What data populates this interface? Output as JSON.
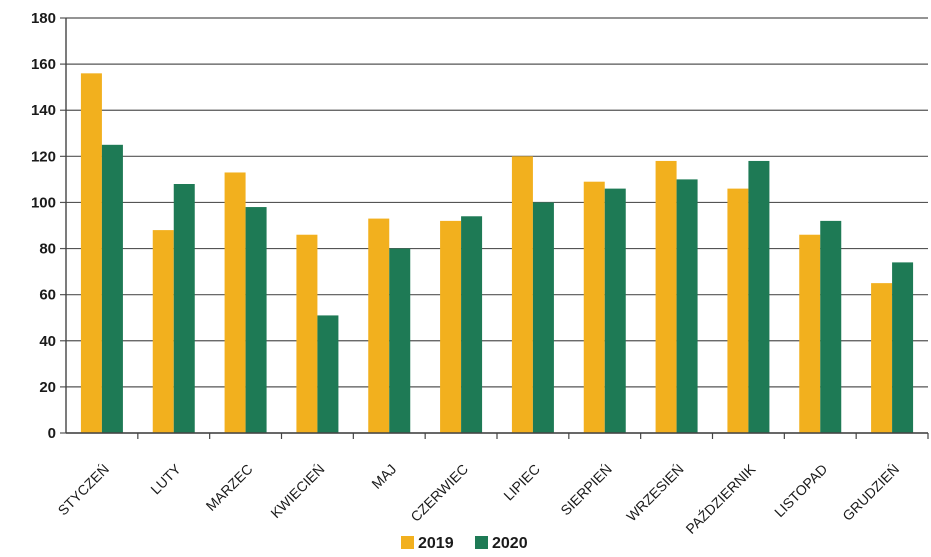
{
  "chart_data": {
    "type": "bar",
    "title": "",
    "xlabel": "",
    "ylabel": "",
    "ylim": [
      0,
      180
    ],
    "yticks": [
      0,
      20,
      40,
      60,
      80,
      100,
      120,
      140,
      160,
      180
    ],
    "grid": true,
    "legend_position": "bottom",
    "categories": [
      "STYCZEŃ",
      "LUTY",
      "MARZEC",
      "KWIECIEŃ",
      "MAJ",
      "CZERWIEC",
      "LIPIEC",
      "SIERPIEŃ",
      "WRZESIEŃ",
      "PAŹDZIERNIK",
      "LISTOPAD",
      "GRUDZIEŃ"
    ],
    "series": [
      {
        "name": "2019",
        "color": "#f2b01e",
        "values": [
          156,
          88,
          113,
          86,
          93,
          92,
          120,
          109,
          118,
          106,
          86,
          65
        ]
      },
      {
        "name": "2020",
        "color": "#1e7a55",
        "values": [
          125,
          108,
          98,
          51,
          80,
          94,
          100,
          106,
          110,
          118,
          92,
          74
        ]
      }
    ]
  }
}
